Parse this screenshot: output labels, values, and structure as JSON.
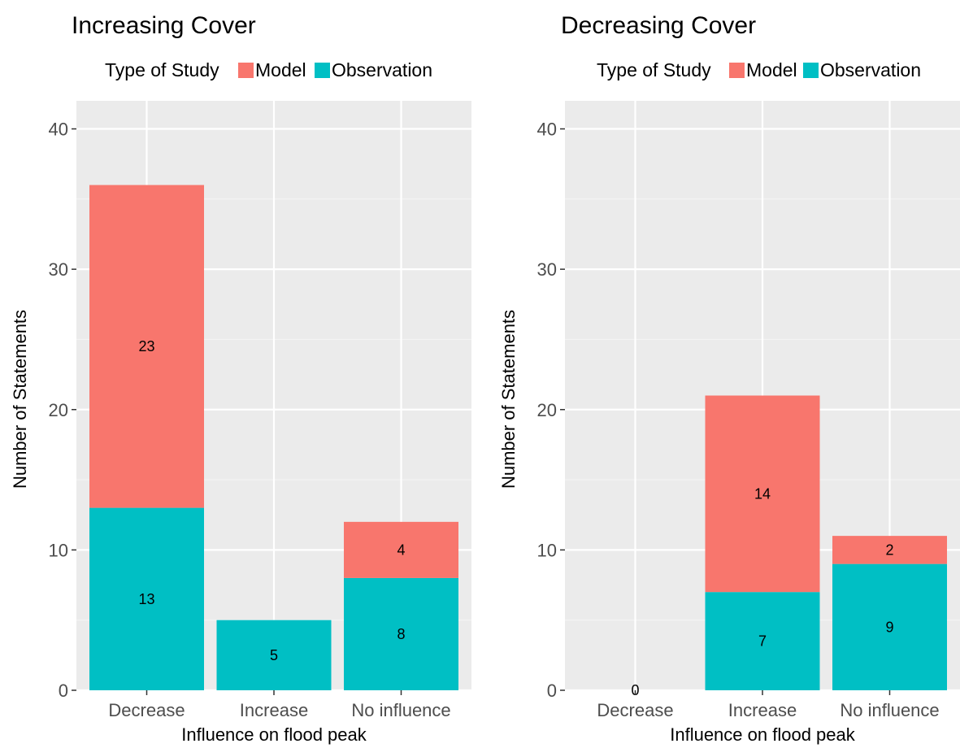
{
  "chart_data": [
    {
      "type": "bar",
      "stacked": true,
      "title": "Increasing Cover",
      "xlabel": "Influence on flood peak",
      "ylabel": "Number of Statements",
      "legend_title": "Type of Study",
      "legend_position": "top",
      "categories": [
        "Decrease",
        "Increase",
        "No influence"
      ],
      "series": [
        {
          "name": "Model",
          "color": "#F8766D",
          "values": [
            23,
            0,
            4
          ],
          "labels": [
            "23",
            "",
            "4"
          ]
        },
        {
          "name": "Observation",
          "color": "#00BFC4",
          "values": [
            13,
            5,
            8
          ],
          "labels": [
            "13",
            "5",
            "8"
          ]
        }
      ],
      "ylim": [
        0,
        42
      ],
      "yticks": [
        0,
        10,
        20,
        30,
        40
      ],
      "ytick_labels": [
        "0",
        "10",
        "20",
        "30",
        "40"
      ],
      "grid": true
    },
    {
      "type": "bar",
      "stacked": true,
      "title": "Decreasing Cover",
      "xlabel": "Influence on flood peak",
      "ylabel": "Number of Statements",
      "legend_title": "Type of Study",
      "legend_position": "top",
      "categories": [
        "Decrease",
        "Increase",
        "No influence"
      ],
      "series": [
        {
          "name": "Model",
          "color": "#F8766D",
          "values": [
            0,
            14,
            2
          ],
          "labels": [
            "",
            "14",
            "2"
          ]
        },
        {
          "name": "Observation",
          "color": "#00BFC4",
          "values": [
            0,
            7,
            9
          ],
          "labels": [
            "0",
            "7",
            "9"
          ]
        }
      ],
      "ylim": [
        0,
        42
      ],
      "yticks": [
        0,
        10,
        20,
        30,
        40
      ],
      "ytick_labels": [
        "0",
        "10",
        "20",
        "30",
        "40"
      ],
      "grid": true
    }
  ]
}
